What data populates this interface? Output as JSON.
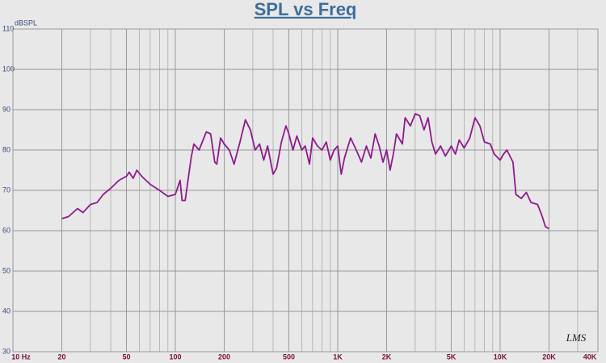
{
  "chart_data": {
    "type": "line",
    "title": "SPL vs Freq",
    "y_label": "dBSPL",
    "logo": "LMS",
    "xlog": true,
    "grid": true,
    "xlim": [
      10,
      40000
    ],
    "xticks": [
      {
        "value": 10,
        "label": "10 Hz"
      },
      20,
      50,
      100,
      200,
      500,
      {
        "value": 1000,
        "label": "1K"
      },
      {
        "value": 2000,
        "label": "2K"
      },
      {
        "value": 5000,
        "label": "5K"
      },
      {
        "value": 10000,
        "label": "10K"
      },
      {
        "value": 20000,
        "label": "20K"
      },
      {
        "value": 40000,
        "label": "40K"
      }
    ],
    "xminor": [
      30,
      40,
      60,
      70,
      80,
      90,
      300,
      400,
      600,
      700,
      800,
      900,
      3000,
      4000,
      6000,
      7000,
      8000,
      9000,
      30000
    ],
    "ylim": [
      30,
      110
    ],
    "yticks": [
      30,
      40,
      50,
      60,
      70,
      80,
      90,
      100,
      110
    ],
    "series": [
      {
        "name": "SPL",
        "color": "#8e1a8e",
        "x": [
          20,
          22,
          25,
          27,
          30,
          33,
          36,
          40,
          45,
          50,
          52,
          55,
          58,
          62,
          70,
          80,
          90,
          100,
          107,
          110,
          115,
          125,
          130,
          140,
          155,
          165,
          175,
          180,
          190,
          200,
          215,
          230,
          250,
          270,
          290,
          310,
          330,
          350,
          370,
          400,
          420,
          450,
          480,
          500,
          530,
          560,
          600,
          630,
          670,
          700,
          750,
          800,
          850,
          900,
          950,
          1000,
          1050,
          1100,
          1200,
          1300,
          1400,
          1500,
          1600,
          1700,
          1800,
          1900,
          2000,
          2100,
          2200,
          2300,
          2500,
          2600,
          2800,
          3000,
          3200,
          3400,
          3600,
          3800,
          4000,
          4300,
          4600,
          5000,
          5300,
          5600,
          6000,
          6500,
          7000,
          7500,
          8000,
          8700,
          9200,
          10000,
          10500,
          11000,
          12000,
          12500,
          13500,
          14500,
          15500,
          17000,
          18000,
          19000,
          20000
        ],
        "values": [
          63,
          63.5,
          65.5,
          64.5,
          66.5,
          67,
          69,
          70.5,
          72.5,
          73.5,
          74.5,
          73,
          75,
          73.5,
          71.5,
          70,
          68.5,
          69,
          72.5,
          67.5,
          67.5,
          78,
          81.5,
          80,
          84.5,
          84,
          77,
          76.5,
          83,
          81.5,
          80,
          76.5,
          82,
          87.5,
          85,
          80,
          81.5,
          77.5,
          81,
          74,
          75.5,
          82,
          86,
          84,
          80,
          83.5,
          80,
          81,
          76.5,
          83,
          81,
          80,
          82,
          77.5,
          80,
          81,
          74,
          78,
          83,
          80,
          77,
          81,
          78,
          84,
          81,
          77,
          80,
          75,
          79,
          84,
          81.5,
          88,
          86,
          89,
          88.5,
          85,
          88,
          82,
          79,
          81,
          78.5,
          81,
          79,
          82.5,
          80.5,
          83,
          88,
          86,
          82,
          81.5,
          79,
          77.5,
          79,
          80,
          77,
          69,
          68,
          69.5,
          67,
          66.5,
          64,
          61,
          60.5
        ]
      }
    ]
  }
}
